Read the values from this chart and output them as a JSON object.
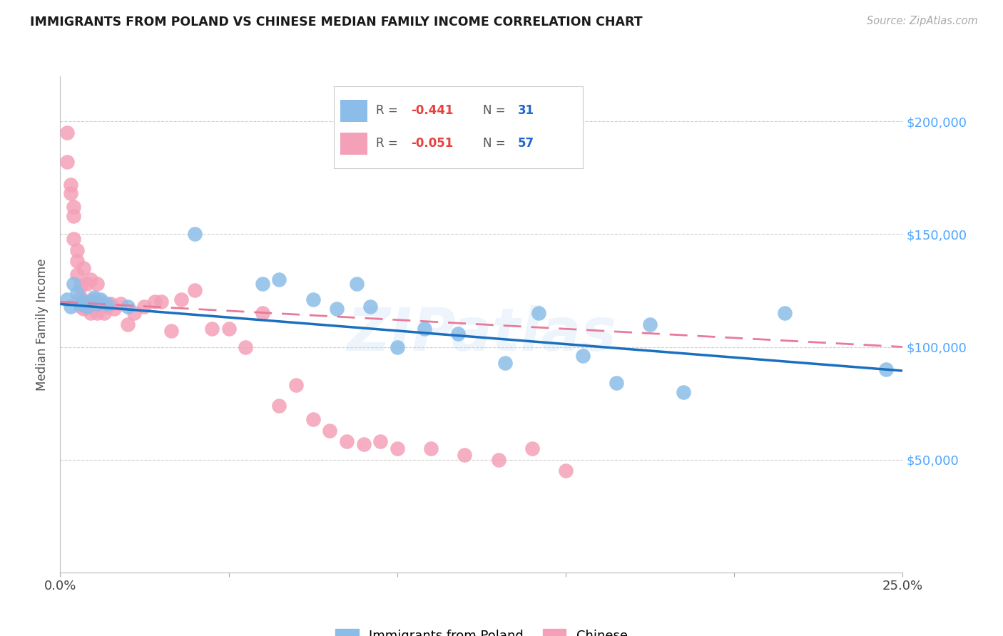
{
  "title": "IMMIGRANTS FROM POLAND VS CHINESE MEDIAN FAMILY INCOME CORRELATION CHART",
  "source_text": "Source: ZipAtlas.com",
  "ylabel": "Median Family Income",
  "legend_label1": "Immigrants from Poland",
  "legend_label2": "Chinese",
  "yticks": [
    0,
    50000,
    100000,
    150000,
    200000
  ],
  "ytick_labels": [
    "",
    "$50,000",
    "$100,000",
    "$150,000",
    "$200,000"
  ],
  "xlim": [
    0.0,
    0.25
  ],
  "ylim": [
    0,
    220000
  ],
  "poland_color": "#8bbde8",
  "chinese_color": "#f4a0b8",
  "poland_line_color": "#1a6fbe",
  "chinese_line_color": "#e87a9a",
  "background_color": "#ffffff",
  "grid_color": "#d0d0d0",
  "right_tick_color": "#4da6ff",
  "r_value_color": "#e84040",
  "n_value_color": "#2266cc",
  "poland_r": "-0.441",
  "poland_n": "31",
  "chinese_r": "-0.051",
  "chinese_n": "57",
  "poland_x": [
    0.002,
    0.003,
    0.004,
    0.005,
    0.006,
    0.007,
    0.008,
    0.009,
    0.01,
    0.011,
    0.012,
    0.014,
    0.02,
    0.04,
    0.06,
    0.065,
    0.075,
    0.082,
    0.088,
    0.092,
    0.1,
    0.108,
    0.118,
    0.132,
    0.142,
    0.155,
    0.165,
    0.175,
    0.185,
    0.215,
    0.245
  ],
  "poland_y": [
    121000,
    118000,
    128000,
    124000,
    119000,
    120000,
    118000,
    120000,
    122000,
    119000,
    121000,
    119000,
    118000,
    150000,
    128000,
    130000,
    121000,
    117000,
    128000,
    118000,
    100000,
    108000,
    106000,
    93000,
    115000,
    96000,
    84000,
    110000,
    80000,
    115000,
    90000
  ],
  "chinese_x": [
    0.002,
    0.002,
    0.003,
    0.003,
    0.004,
    0.004,
    0.004,
    0.005,
    0.005,
    0.005,
    0.006,
    0.006,
    0.006,
    0.007,
    0.007,
    0.007,
    0.008,
    0.008,
    0.008,
    0.009,
    0.009,
    0.01,
    0.01,
    0.011,
    0.011,
    0.012,
    0.012,
    0.013,
    0.014,
    0.015,
    0.016,
    0.018,
    0.02,
    0.022,
    0.025,
    0.028,
    0.03,
    0.033,
    0.036,
    0.04,
    0.045,
    0.05,
    0.055,
    0.06,
    0.065,
    0.07,
    0.075,
    0.08,
    0.085,
    0.09,
    0.095,
    0.1,
    0.11,
    0.12,
    0.13,
    0.14,
    0.15
  ],
  "chinese_y": [
    195000,
    182000,
    168000,
    172000,
    158000,
    162000,
    148000,
    143000,
    132000,
    138000,
    122000,
    127000,
    118000,
    135000,
    120000,
    117000,
    128000,
    119000,
    118000,
    130000,
    115000,
    119000,
    121000,
    128000,
    115000,
    120000,
    118000,
    115000,
    118000,
    119000,
    117000,
    119000,
    110000,
    115000,
    118000,
    120000,
    120000,
    107000,
    121000,
    125000,
    108000,
    108000,
    100000,
    115000,
    74000,
    83000,
    68000,
    63000,
    58000,
    57000,
    58000,
    55000,
    55000,
    52000,
    50000,
    55000,
    45000
  ]
}
